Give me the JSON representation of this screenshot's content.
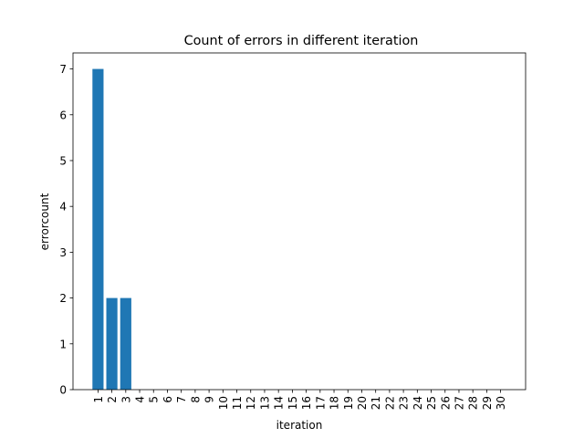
{
  "chart_data": {
    "type": "bar",
    "title": "Count of errors in different iteration",
    "xlabel": "iteration",
    "ylabel": "errorcount",
    "categories": [
      "1",
      "2",
      "3",
      "4",
      "5",
      "6",
      "7",
      "8",
      "9",
      "10",
      "11",
      "12",
      "13",
      "14",
      "15",
      "16",
      "17",
      "18",
      "19",
      "20",
      "21",
      "22",
      "23",
      "24",
      "25",
      "26",
      "27",
      "28",
      "29",
      "30"
    ],
    "values": [
      7,
      2,
      2,
      0,
      0,
      0,
      0,
      0,
      0,
      0,
      0,
      0,
      0,
      0,
      0,
      0,
      0,
      0,
      0,
      0,
      0,
      0,
      0,
      0,
      0,
      0,
      0,
      0,
      0,
      0
    ],
    "ylim": [
      0,
      7.35
    ],
    "yticks": [
      0,
      1,
      2,
      3,
      4,
      5,
      6,
      7
    ],
    "grid": false,
    "bar_color": "#1f77b4"
  }
}
